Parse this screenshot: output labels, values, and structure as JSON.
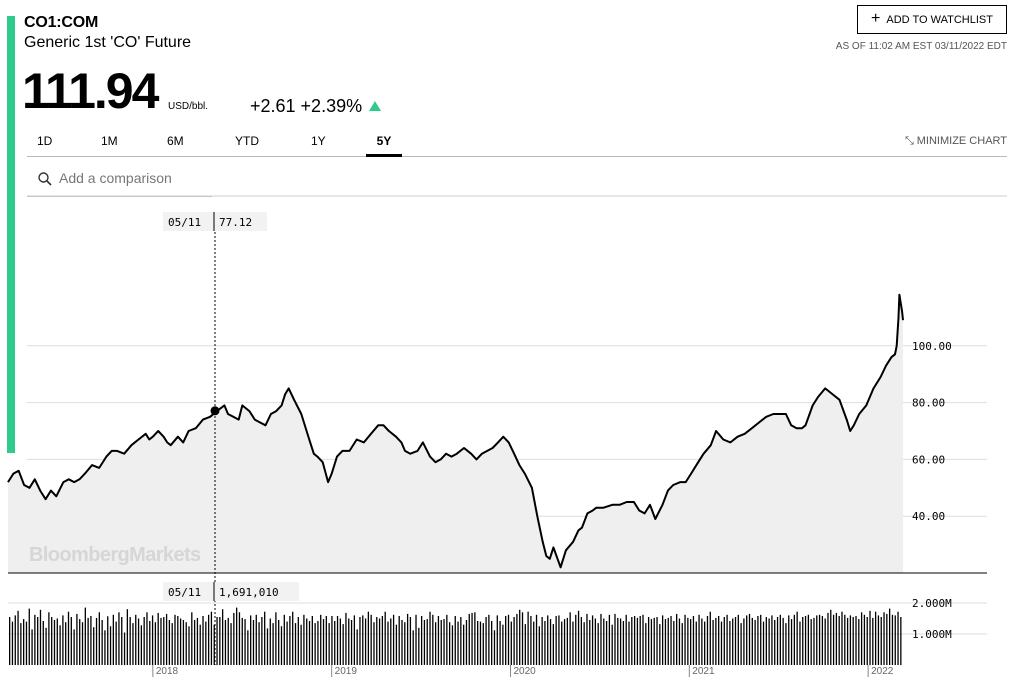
{
  "header": {
    "ticker": "CO1:COM",
    "name": "Generic 1st 'CO' Future",
    "price": "111.94",
    "unit": "USD/bbl.",
    "change": "+2.61 +2.39%",
    "watchlist_label": "ADD TO WATCHLIST",
    "as_of": "AS OF 11:02 AM EST 03/11/2022 EDT"
  },
  "tabs": [
    {
      "label": "1D"
    },
    {
      "label": "1M"
    },
    {
      "label": "6M"
    },
    {
      "label": "YTD"
    },
    {
      "label": "1Y"
    },
    {
      "label": "5Y"
    }
  ],
  "active_tab": "5Y",
  "minimize_label": "MINIMIZE CHART",
  "search": {
    "placeholder": "Add a comparison"
  },
  "watermark": "BloombergMarkets",
  "tooltip": {
    "date": "05/11",
    "price": "77.12",
    "volume": "1,691,010"
  },
  "colors": {
    "accent": "#2ecb8c",
    "line": "#000000",
    "area": "#efefef"
  },
  "chart_data": [
    {
      "type": "area",
      "series": [
        {
          "values": [
            [
              2017.19,
              52
            ],
            [
              2017.22,
              55
            ],
            [
              2017.25,
              56
            ],
            [
              2017.28,
              51
            ],
            [
              2017.31,
              50
            ],
            [
              2017.34,
              53
            ],
            [
              2017.37,
              49
            ],
            [
              2017.4,
              46
            ],
            [
              2017.43,
              49
            ],
            [
              2017.46,
              47
            ],
            [
              2017.5,
              52
            ],
            [
              2017.53,
              53
            ],
            [
              2017.56,
              52
            ],
            [
              2017.59,
              53
            ],
            [
              2017.62,
              55
            ],
            [
              2017.66,
              58
            ],
            [
              2017.7,
              57
            ],
            [
              2017.74,
              61
            ],
            [
              2017.77,
              63
            ],
            [
              2017.8,
              63
            ],
            [
              2017.84,
              62
            ],
            [
              2017.88,
              65
            ],
            [
              2017.92,
              67
            ],
            [
              2017.96,
              69
            ],
            [
              2017.98,
              67
            ],
            [
              2018.0,
              68
            ],
            [
              2018.03,
              70
            ],
            [
              2018.06,
              68
            ],
            [
              2018.08,
              66
            ],
            [
              2018.1,
              65
            ],
            [
              2018.14,
              68
            ],
            [
              2018.17,
              66
            ],
            [
              2018.2,
              70
            ],
            [
              2018.24,
              71
            ],
            [
              2018.28,
              74
            ],
            [
              2018.32,
              75
            ],
            [
              2018.36,
              77.12
            ],
            [
              2018.4,
              79
            ],
            [
              2018.42,
              76
            ],
            [
              2018.45,
              75
            ],
            [
              2018.48,
              74
            ],
            [
              2018.5,
              79
            ],
            [
              2018.54,
              77
            ],
            [
              2018.57,
              74
            ],
            [
              2018.6,
              73
            ],
            [
              2018.63,
              72
            ],
            [
              2018.66,
              76
            ],
            [
              2018.69,
              77
            ],
            [
              2018.72,
              79
            ],
            [
              2018.74,
              83
            ],
            [
              2018.76,
              85
            ],
            [
              2018.79,
              81
            ],
            [
              2018.83,
              76
            ],
            [
              2018.86,
              70
            ],
            [
              2018.88,
              66
            ],
            [
              2018.9,
              62
            ],
            [
              2018.92,
              61
            ],
            [
              2018.95,
              59
            ],
            [
              2018.98,
              52
            ],
            [
              2019.0,
              55
            ],
            [
              2019.03,
              61
            ],
            [
              2019.06,
              63
            ],
            [
              2019.1,
              63
            ],
            [
              2019.14,
              67
            ],
            [
              2019.18,
              66
            ],
            [
              2019.22,
              69
            ],
            [
              2019.26,
              72
            ],
            [
              2019.29,
              72
            ],
            [
              2019.32,
              70
            ],
            [
              2019.36,
              68
            ],
            [
              2019.39,
              66
            ],
            [
              2019.41,
              63
            ],
            [
              2019.44,
              62
            ],
            [
              2019.48,
              63
            ],
            [
              2019.51,
              66
            ],
            [
              2019.55,
              61
            ],
            [
              2019.58,
              59
            ],
            [
              2019.61,
              60
            ],
            [
              2019.64,
              62
            ],
            [
              2019.67,
              61
            ],
            [
              2019.7,
              62
            ],
            [
              2019.74,
              64
            ],
            [
              2019.78,
              62
            ],
            [
              2019.81,
              60
            ],
            [
              2019.84,
              62
            ],
            [
              2019.87,
              63
            ],
            [
              2019.9,
              64
            ],
            [
              2019.93,
              66
            ],
            [
              2019.96,
              68
            ],
            [
              2019.99,
              66
            ],
            [
              2020.02,
              62
            ],
            [
              2020.05,
              58
            ],
            [
              2020.08,
              55
            ],
            [
              2020.12,
              50
            ],
            [
              2020.15,
              40
            ],
            [
              2020.18,
              31
            ],
            [
              2020.2,
              26
            ],
            [
              2020.22,
              25
            ],
            [
              2020.24,
              29
            ],
            [
              2020.28,
              22
            ],
            [
              2020.31,
              28
            ],
            [
              2020.35,
              31
            ],
            [
              2020.38,
              35
            ],
            [
              2020.4,
              36
            ],
            [
              2020.43,
              41
            ],
            [
              2020.46,
              42
            ],
            [
              2020.48,
              43
            ],
            [
              2020.52,
              43
            ],
            [
              2020.57,
              44
            ],
            [
              2020.61,
              44
            ],
            [
              2020.65,
              45
            ],
            [
              2020.69,
              45
            ],
            [
              2020.72,
              42
            ],
            [
              2020.75,
              41
            ],
            [
              2020.78,
              44
            ],
            [
              2020.81,
              39
            ],
            [
              2020.85,
              44
            ],
            [
              2020.88,
              49
            ],
            [
              2020.91,
              51
            ],
            [
              2020.95,
              52
            ],
            [
              2020.98,
              52
            ],
            [
              2021.01,
              55
            ],
            [
              2021.05,
              59
            ],
            [
              2021.08,
              62
            ],
            [
              2021.12,
              65
            ],
            [
              2021.15,
              70
            ],
            [
              2021.19,
              67
            ],
            [
              2021.23,
              66
            ],
            [
              2021.27,
              68
            ],
            [
              2021.31,
              69
            ],
            [
              2021.35,
              71
            ],
            [
              2021.39,
              73
            ],
            [
              2021.43,
              75
            ],
            [
              2021.47,
              76
            ],
            [
              2021.51,
              76
            ],
            [
              2021.54,
              76
            ],
            [
              2021.57,
              72
            ],
            [
              2021.6,
              71
            ],
            [
              2021.63,
              71
            ],
            [
              2021.65,
              72
            ],
            [
              2021.69,
              79
            ],
            [
              2021.72,
              82
            ],
            [
              2021.76,
              85
            ],
            [
              2021.8,
              83
            ],
            [
              2021.84,
              81
            ],
            [
              2021.88,
              74
            ],
            [
              2021.9,
              70
            ],
            [
              2021.92,
              72
            ],
            [
              2021.95,
              76
            ],
            [
              2021.99,
              79
            ],
            [
              2022.03,
              85
            ],
            [
              2022.07,
              89
            ],
            [
              2022.1,
              93
            ],
            [
              2022.13,
              96
            ],
            [
              2022.15,
              97
            ],
            [
              2022.16,
              100
            ],
            [
              2022.17,
              110
            ],
            [
              2022.175,
              118
            ],
            [
              2022.19,
              112
            ],
            [
              2022.195,
              109
            ]
          ]
        }
      ],
      "ylim": [
        20,
        125
      ],
      "y_ticks": [
        "40.00",
        "60.00",
        "80.00",
        "100.00"
      ],
      "x_ticks": [
        "2018",
        "2019",
        "2020",
        "2021",
        "2022"
      ],
      "grid": true
    },
    {
      "type": "bar",
      "series": [
        {
          "values": [
            1.55,
            1.4,
            1.6,
            1.75,
            1.35,
            1.48,
            1.4,
            1.82,
            1.15,
            1.62,
            1.55,
            1.78,
            1.42,
            1.2,
            1.7,
            1.55,
            1.45,
            1.5,
            1.28,
            1.6,
            1.38,
            1.72,
            1.55,
            1.15,
            1.65,
            1.48,
            1.38,
            1.85,
            1.52,
            1.58,
            1.22,
            1.52,
            1.7,
            1.45,
            1.12,
            1.57,
            1.25,
            1.62,
            1.4,
            1.7,
            1.55,
            1.05,
            1.8,
            1.55,
            1.35,
            1.62,
            1.5,
            1.28,
            1.55,
            1.7,
            1.42,
            1.6,
            1.38,
            1.68,
            1.52,
            1.55,
            1.65,
            1.45,
            1.35,
            1.62,
            1.58,
            1.5,
            1.45,
            1.38,
            1.25,
            1.7,
            1.45,
            1.52,
            1.3,
            1.58,
            1.4,
            1.62,
            1.72,
            1.3,
            1.55,
            1.55,
            1.8,
            1.45,
            1.52,
            1.35,
            1.68,
            1.85,
            1.7,
            1.52,
            1.48,
            1.12,
            1.6,
            1.45,
            1.62,
            1.38,
            1.55,
            1.72,
            1.18,
            1.5,
            1.35,
            1.7,
            1.45,
            1.25,
            1.62,
            1.4,
            1.58,
            1.72,
            1.35,
            1.55,
            1.3,
            1.62,
            1.5,
            1.42,
            1.58,
            1.35,
            1.42,
            1.62,
            1.48,
            1.58,
            1.35,
            1.58,
            1.42,
            1.58,
            1.5,
            1.32,
            1.68,
            1.5,
            1.45,
            1.6,
            1.15,
            1.55,
            1.6,
            1.5,
            1.72,
            1.62,
            1.38,
            1.55,
            1.5,
            1.58,
            1.72,
            1.4,
            1.5,
            1.62,
            1.3,
            1.58,
            1.45,
            1.38,
            1.65,
            1.55,
            1.12,
            1.62,
            1.2,
            1.58,
            1.45,
            1.48,
            1.72,
            1.62,
            1.38,
            1.58,
            1.45,
            1.48,
            1.62,
            1.38,
            1.28,
            1.58,
            1.4,
            1.55,
            1.3,
            1.45,
            1.65,
            1.68,
            1.7,
            1.42,
            1.4,
            1.35,
            1.55,
            1.62,
            1.42,
            1.12,
            1.6,
            1.42,
            1.3,
            1.58,
            1.62,
            1.4,
            1.55,
            1.65,
            1.78,
            1.7,
            1.32,
            1.72,
            1.58,
            1.4,
            1.62,
            1.25,
            1.55,
            1.42,
            1.6,
            1.48,
            1.32,
            1.58,
            1.6,
            1.4,
            1.48,
            1.52,
            1.7,
            1.4,
            1.62,
            1.75,
            1.55,
            1.38,
            1.65,
            1.45,
            1.6,
            1.5,
            1.35,
            1.65,
            1.5,
            1.42,
            1.62,
            1.3,
            1.65,
            1.52,
            1.5,
            1.42,
            1.62,
            1.4,
            1.55,
            1.58,
            1.52,
            1.58,
            1.62,
            1.35,
            1.55,
            1.48,
            1.52,
            1.55,
            1.32,
            1.6,
            1.48,
            1.52,
            1.58,
            1.42,
            1.65,
            1.5,
            1.35,
            1.62,
            1.52,
            1.48,
            1.58,
            1.4,
            1.62,
            1.5,
            1.4,
            1.58,
            1.72,
            1.45,
            1.52,
            1.58,
            1.4,
            1.55,
            1.62,
            1.42,
            1.5,
            1.55,
            1.62,
            1.35,
            1.5,
            1.6,
            1.65,
            1.52,
            1.45,
            1.58,
            1.62,
            1.4,
            1.55,
            1.5,
            1.6,
            1.45,
            1.55,
            1.62,
            1.52,
            1.35,
            1.6,
            1.48,
            1.62,
            1.72,
            1.4,
            1.55,
            1.58,
            1.62,
            1.48,
            1.52,
            1.6,
            1.62,
            1.58,
            1.5,
            1.68,
            1.78,
            1.62,
            1.68,
            1.58,
            1.72,
            1.62,
            1.52,
            1.6,
            1.55,
            1.58,
            1.48,
            1.7,
            1.62,
            1.55,
            1.75,
            1.52,
            1.72,
            1.6,
            1.55,
            1.7,
            1.65,
            1.82,
            1.62,
            1.6,
            1.72,
            1.55
          ]
        }
      ],
      "ylim": [
        0,
        2.5
      ],
      "y_ticks": [
        "1.000M",
        "2.000M"
      ]
    }
  ]
}
